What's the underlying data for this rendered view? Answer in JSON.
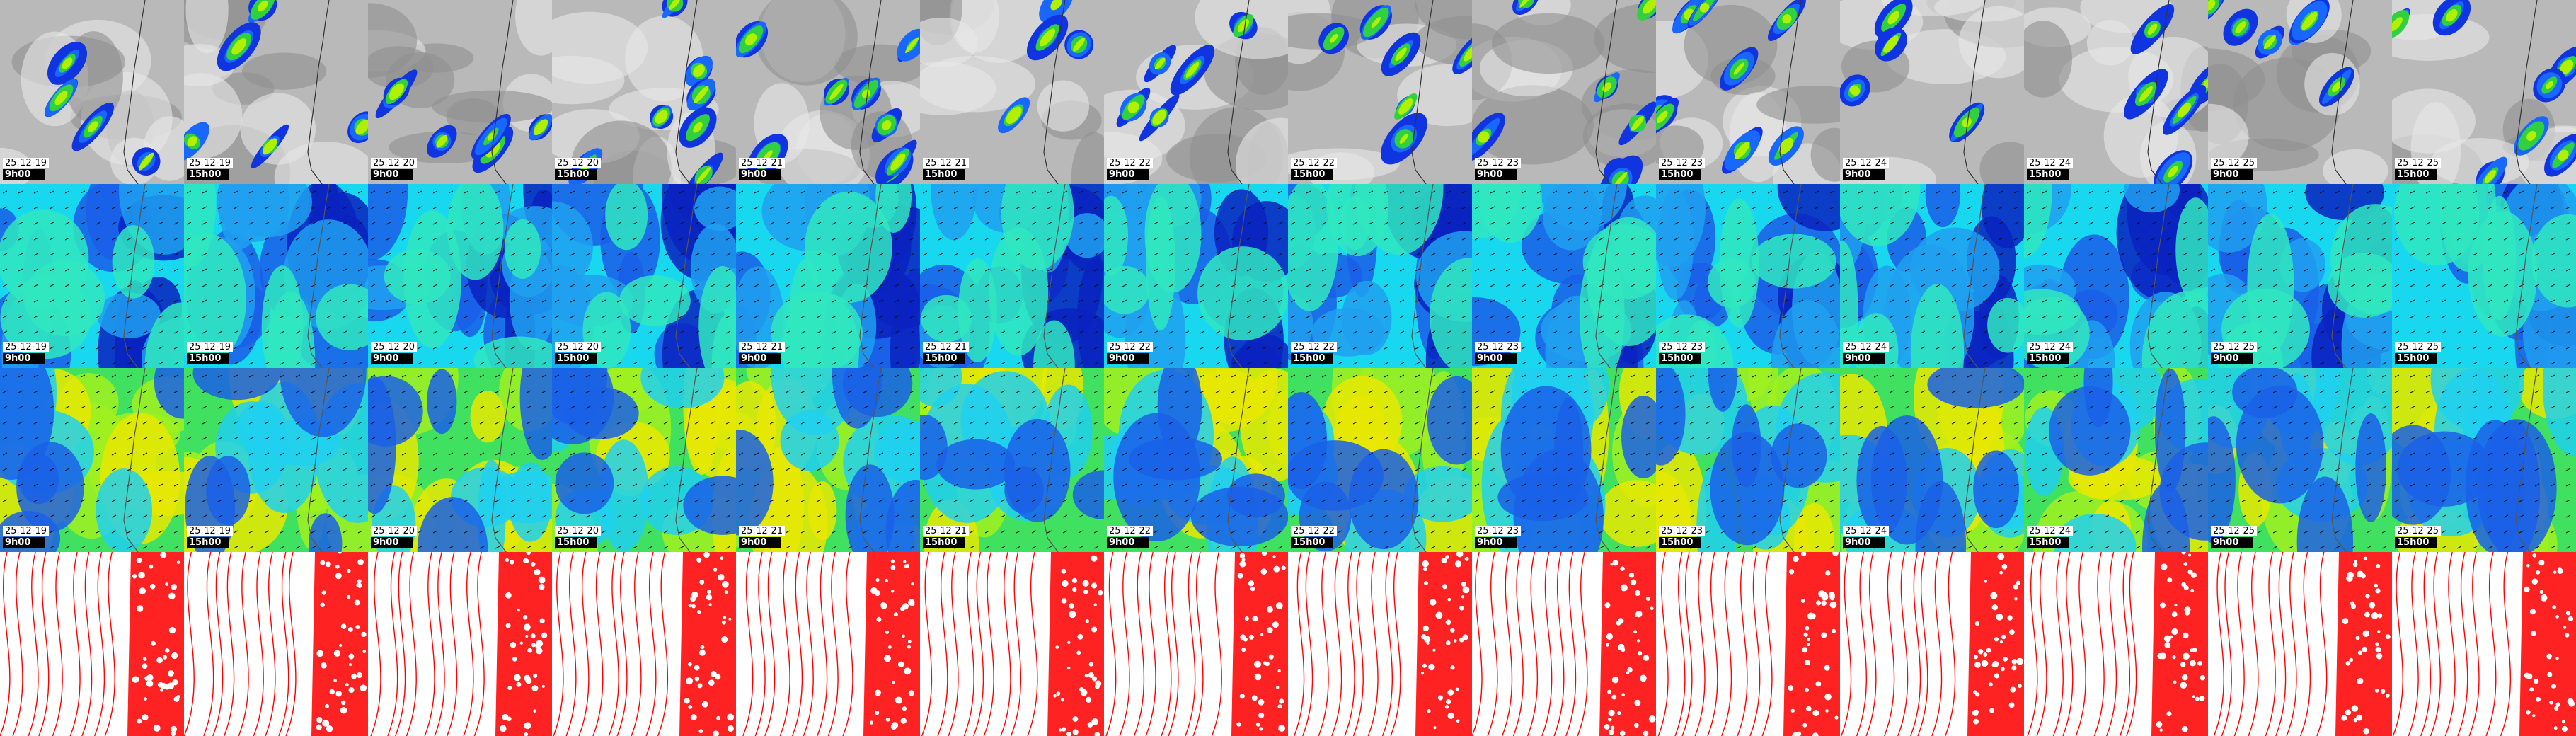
{
  "columns": [
    {
      "date": "25-12-19",
      "time": "9h00"
    },
    {
      "date": "25-12-19",
      "time": "15h00"
    },
    {
      "date": "25-12-20",
      "time": "9h00"
    },
    {
      "date": "25-12-20",
      "time": "15h00"
    },
    {
      "date": "25-12-21",
      "time": "9h00"
    },
    {
      "date": "25-12-21",
      "time": "15h00"
    },
    {
      "date": "25-12-22",
      "time": "9h00"
    },
    {
      "date": "25-12-22",
      "time": "15h00"
    },
    {
      "date": "25-12-23",
      "time": "9h00"
    },
    {
      "date": "25-12-23",
      "time": "15h00"
    },
    {
      "date": "25-12-24",
      "time": "9h00"
    },
    {
      "date": "25-12-24",
      "time": "15h00"
    },
    {
      "date": "25-12-25",
      "time": "9h00"
    },
    {
      "date": "25-12-25",
      "time": "15h00"
    }
  ]
}
